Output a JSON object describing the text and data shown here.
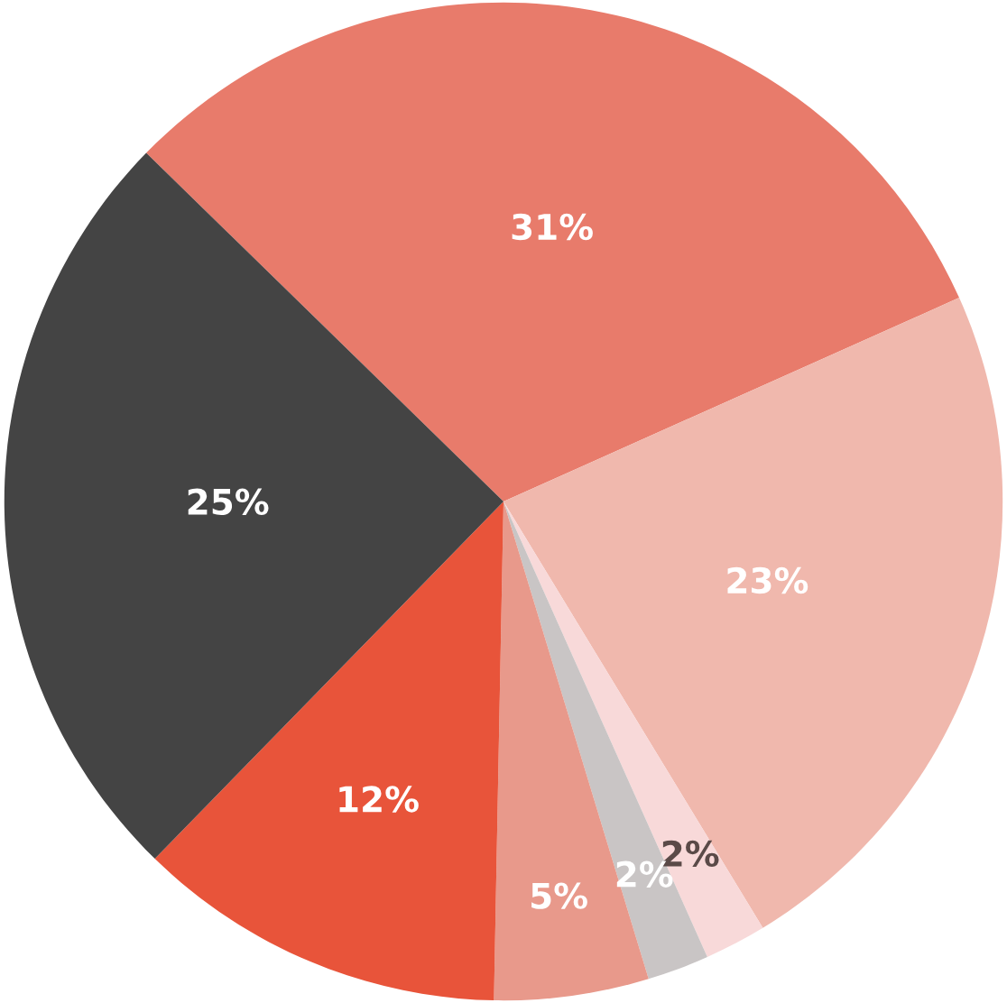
{
  "chart_data": {
    "type": "pie",
    "categories": [
      null,
      null,
      null,
      null,
      null,
      null,
      null
    ],
    "values": [
      31,
      23,
      2,
      2,
      5,
      12,
      25
    ],
    "value_labels": [
      "31%",
      "23%",
      "2%",
      "2%",
      "5%",
      "12%",
      "25%"
    ],
    "colors": [
      "#e87b6b",
      "#f0b8ad",
      "#f8d9d9",
      "#c9c5c5",
      "#e8998b",
      "#e8543a",
      "#444444"
    ],
    "legend": false
  }
}
